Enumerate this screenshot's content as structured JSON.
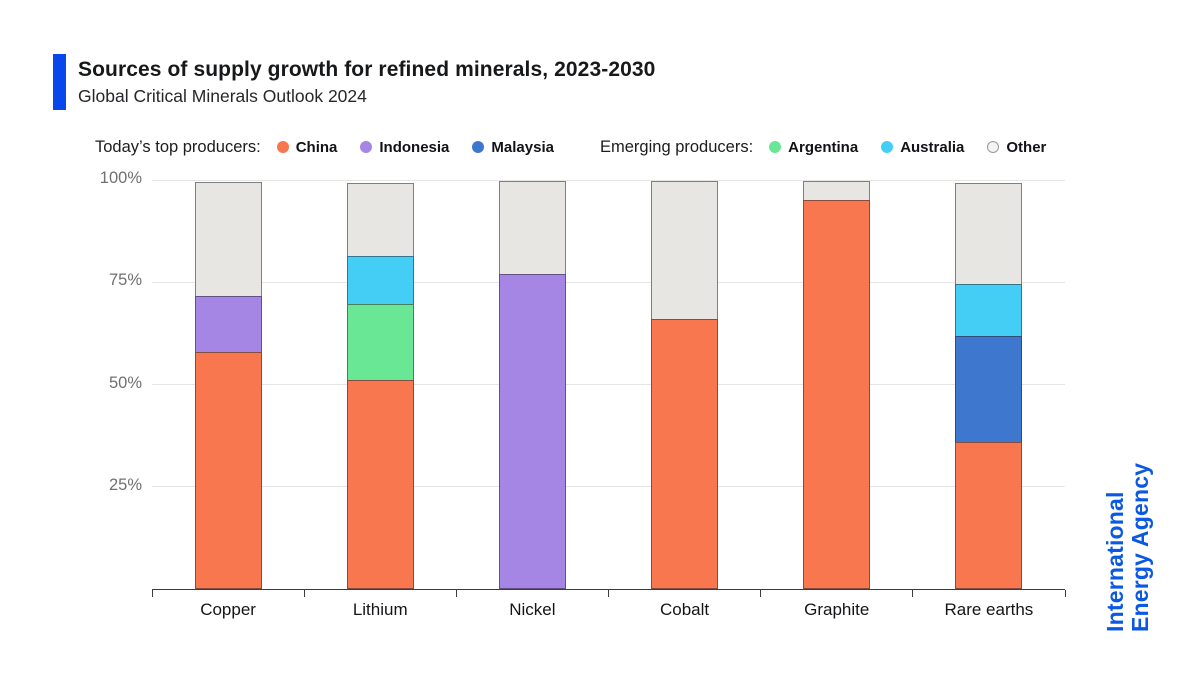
{
  "header": {
    "title": "Sources of supply growth for refined minerals, 2023-2030",
    "subtitle": "Global Critical Minerals Outlook 2024",
    "accent_color": "#0847EB"
  },
  "legend": {
    "top_producers_label": "Today’s top producers:",
    "emerging_producers_label": "Emerging producers:",
    "producers": [
      {
        "name": "China",
        "color": "#F8774E",
        "group": "top"
      },
      {
        "name": "Indonesia",
        "color": "#A586E4",
        "group": "top"
      },
      {
        "name": "Malaysia",
        "color": "#3D77CE",
        "group": "top"
      },
      {
        "name": "Argentina",
        "color": "#69E795",
        "group": "emerging"
      },
      {
        "name": "Australia",
        "color": "#45CEF5",
        "group": "emerging"
      },
      {
        "name": "Other",
        "color": "#F4F4F3",
        "group": "emerging",
        "outlined": true,
        "outline_color": "#97989A"
      }
    ]
  },
  "branding": {
    "line1": "International",
    "line2": "Energy Agency",
    "color": "#0B58E2"
  },
  "chart_data": {
    "type": "bar",
    "stacked": true,
    "unit": "%",
    "title": "Sources of supply growth for refined minerals, 2023-2030",
    "subtitle": "Global Critical Minerals Outlook 2024",
    "categories": [
      "Copper",
      "Lithium",
      "Nickel",
      "Cobalt",
      "Graphite",
      "Rare earths"
    ],
    "series": [
      {
        "name": "China",
        "color": "#F8774E",
        "values": [
          58,
          51,
          0,
          66,
          95,
          36
        ]
      },
      {
        "name": "Indonesia",
        "color": "#A586E4",
        "values": [
          14,
          0,
          77,
          0,
          0,
          0
        ]
      },
      {
        "name": "Malaysia",
        "color": "#3D77CE",
        "values": [
          0,
          0,
          0,
          0,
          0,
          26
        ]
      },
      {
        "name": "Argentina",
        "color": "#69E795",
        "values": [
          0,
          19,
          0,
          0,
          0,
          0
        ]
      },
      {
        "name": "Australia",
        "color": "#45CEF5",
        "values": [
          0,
          12,
          0,
          0,
          0,
          13
        ]
      },
      {
        "name": "Other",
        "color": "#E7E6E3",
        "values": [
          28,
          18,
          23,
          34,
          5,
          25
        ]
      }
    ],
    "y_ticks": [
      "100%",
      "75%",
      "50%",
      "25%"
    ],
    "y_tick_values": [
      100,
      75,
      50,
      25
    ],
    "ylim": [
      0,
      100
    ],
    "grid": true,
    "legend_position": "top"
  }
}
